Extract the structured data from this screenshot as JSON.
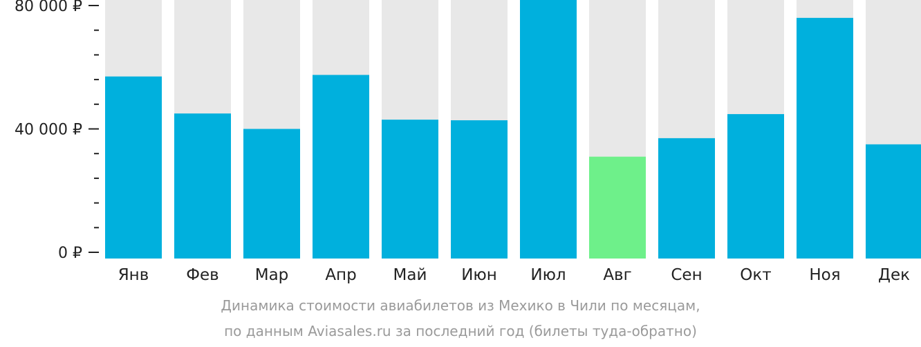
{
  "chart_data": {
    "type": "bar",
    "categories": [
      "Янв",
      "Фев",
      "Мар",
      "Апр",
      "Май",
      "Июн",
      "Июл",
      "Авг",
      "Сен",
      "Окт",
      "Ноя",
      "Дек"
    ],
    "values": [
      57000,
      45000,
      40000,
      57500,
      43000,
      42800,
      84000,
      31000,
      37000,
      44800,
      76000,
      35000
    ],
    "ylim": [
      0,
      80000
    ],
    "yticks": [
      {
        "value": 0,
        "label": "0 ₽"
      },
      {
        "value": 40000,
        "label": "40 000 ₽"
      },
      {
        "value": 80000,
        "label": "80 000 ₽"
      }
    ],
    "minor_tick_step": 8000,
    "highlight_index": 7,
    "title": "Динамика стоимости авиабилетов из Мехико в Чили по месяцам,",
    "subtitle": "по данным Aviasales.ru за последний год (билеты туда-обратно)",
    "colors": {
      "bar": "#00b0dd",
      "highlight": "#6ef08a",
      "background_bar": "#e8e8e8",
      "axis": "#222222",
      "caption": "#9a9a9a"
    }
  }
}
